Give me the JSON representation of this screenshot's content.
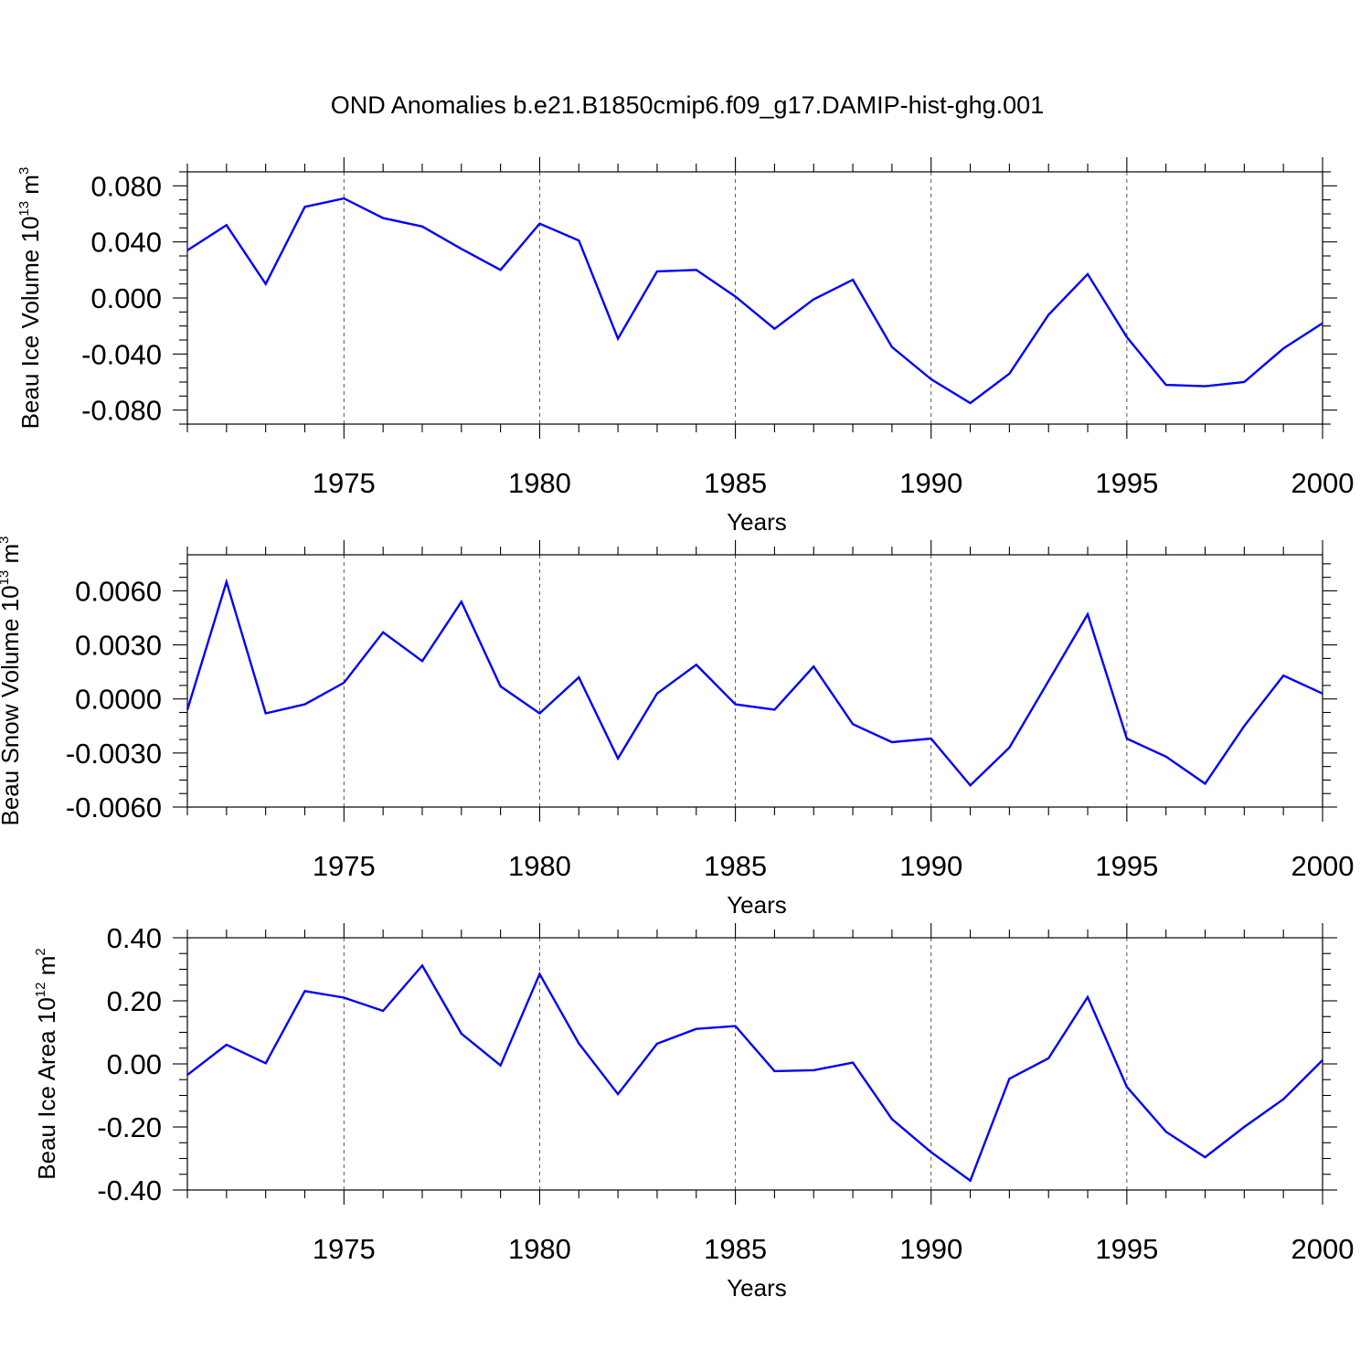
{
  "title": "OND Anomalies b.e21.B1850cmip6.f09_g17.DAMIP-hist-ghg.001",
  "colors": {
    "series": "#0000ff"
  },
  "chart_data": [
    {
      "type": "line",
      "ylabel_main": "Beau Ice Volume 10",
      "ylabel_exp": "13",
      "ylabel_unit": " m",
      "ylabel_unit_exp": "3",
      "xlabel": "Years",
      "xlim": [
        1971,
        2000
      ],
      "ylim": [
        -0.09,
        0.09
      ],
      "y_major_ticks": [
        -0.08,
        -0.04,
        0.0,
        0.04,
        0.08
      ],
      "y_tick_labels": [
        "-0.080",
        "-0.040",
        "0.000",
        "0.040",
        "0.080"
      ],
      "y_minor_step": 0.01,
      "x_major_ticks": [
        1975,
        1980,
        1985,
        1990,
        1995,
        2000
      ],
      "x_tick_labels": [
        "1975",
        "1980",
        "1985",
        "1990",
        "1995",
        "2000"
      ],
      "grid": "dashed vertical at major x ticks",
      "x": [
        1971,
        1972,
        1973,
        1974,
        1975,
        1976,
        1977,
        1978,
        1979,
        1980,
        1981,
        1982,
        1983,
        1984,
        1985,
        1986,
        1987,
        1988,
        1989,
        1990,
        1991,
        1992,
        1993,
        1994,
        1995,
        1996,
        1997,
        1998,
        1999,
        2000
      ],
      "y": [
        0.034,
        0.052,
        0.01,
        0.065,
        0.071,
        0.057,
        0.051,
        0.035,
        0.02,
        0.053,
        0.041,
        -0.029,
        0.019,
        0.02,
        0.001,
        -0.022,
        -0.001,
        0.013,
        -0.035,
        -0.058,
        -0.075,
        -0.054,
        -0.012,
        0.017,
        -0.028,
        -0.062,
        -0.063,
        -0.06,
        -0.036,
        -0.018
      ]
    },
    {
      "type": "line",
      "ylabel_main": "Beau Snow Volume 10",
      "ylabel_exp": "13",
      "ylabel_unit": " m",
      "ylabel_unit_exp": "3",
      "xlabel": "Years",
      "xlim": [
        1971,
        2000
      ],
      "ylim": [
        -0.006,
        0.008
      ],
      "y_major_ticks": [
        -0.006,
        -0.003,
        0.0,
        0.003,
        0.006
      ],
      "y_tick_labels": [
        "-0.0060",
        "-0.0030",
        "0.0000",
        "0.0030",
        "0.0060"
      ],
      "y_minor_step": 0.00075,
      "x_major_ticks": [
        1975,
        1980,
        1985,
        1990,
        1995,
        2000
      ],
      "x_tick_labels": [
        "1975",
        "1980",
        "1985",
        "1990",
        "1995",
        "2000"
      ],
      "grid": "dashed vertical at major x ticks",
      "x": [
        1971,
        1972,
        1973,
        1974,
        1975,
        1976,
        1977,
        1978,
        1979,
        1980,
        1981,
        1982,
        1983,
        1984,
        1985,
        1986,
        1987,
        1988,
        1989,
        1990,
        1991,
        1992,
        1993,
        1994,
        1995,
        1996,
        1997,
        1998,
        1999,
        2000
      ],
      "y": [
        -0.0006,
        0.0065,
        -0.0008,
        -0.0003,
        0.0009,
        0.0037,
        0.0021,
        0.0054,
        0.0007,
        -0.0008,
        0.0012,
        -0.0033,
        0.0003,
        0.0019,
        -0.0003,
        -0.0006,
        0.0018,
        -0.0014,
        -0.0024,
        -0.0022,
        -0.0048,
        -0.0027,
        0.001,
        0.0047,
        -0.0022,
        -0.0032,
        -0.0047,
        -0.0015,
        0.0013,
        0.0003
      ]
    },
    {
      "type": "line",
      "ylabel_main": "Beau Ice Area 10",
      "ylabel_exp": "12",
      "ylabel_unit": " m",
      "ylabel_unit_exp": "2",
      "xlabel": "Years",
      "xlim": [
        1971,
        2000
      ],
      "ylim": [
        -0.4,
        0.4
      ],
      "y_major_ticks": [
        -0.4,
        -0.2,
        0.0,
        0.2,
        0.4
      ],
      "y_tick_labels": [
        "-0.40",
        "-0.20",
        "0.00",
        "0.20",
        "0.40"
      ],
      "y_minor_step": 0.05,
      "x_major_ticks": [
        1975,
        1980,
        1985,
        1990,
        1995,
        2000
      ],
      "x_tick_labels": [
        "1975",
        "1980",
        "1985",
        "1990",
        "1995",
        "2000"
      ],
      "grid": "dashed vertical at major x ticks",
      "x": [
        1971,
        1972,
        1973,
        1974,
        1975,
        1976,
        1977,
        1978,
        1979,
        1980,
        1981,
        1982,
        1983,
        1984,
        1985,
        1986,
        1987,
        1988,
        1989,
        1990,
        1991,
        1992,
        1993,
        1994,
        1995,
        1996,
        1997,
        1998,
        1999,
        2000
      ],
      "y": [
        -0.035,
        0.061,
        0.002,
        0.231,
        0.21,
        0.168,
        0.312,
        0.096,
        -0.005,
        0.285,
        0.065,
        -0.096,
        0.064,
        0.111,
        0.12,
        -0.023,
        -0.02,
        0.004,
        -0.175,
        -0.28,
        -0.37,
        -0.047,
        0.018,
        0.212,
        -0.073,
        -0.215,
        -0.296,
        -0.2,
        -0.112,
        0.012
      ]
    }
  ]
}
